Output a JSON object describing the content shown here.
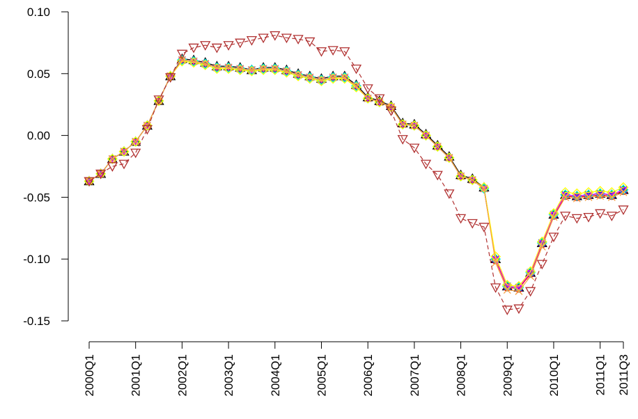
{
  "chart_data": {
    "type": "line",
    "title": "",
    "xlabel": "",
    "ylabel": "",
    "ylim": [
      -0.15,
      0.1
    ],
    "yticks": [
      -0.15,
      -0.1,
      -0.05,
      0.0,
      0.05,
      0.1
    ],
    "ytick_labels": [
      "-0.15",
      "-0.10",
      "-0.05",
      "0.00",
      "0.05",
      "0.10"
    ],
    "xticks": [
      "2000Q1",
      "2001Q1",
      "2002Q1",
      "2003Q1",
      "2004Q1",
      "2005Q1",
      "2006Q1",
      "2007Q1",
      "2008Q1",
      "2009Q1",
      "2010Q1",
      "2011Q1",
      "2011Q3"
    ],
    "x": [
      "2000Q1",
      "2000Q2",
      "2000Q3",
      "2000Q4",
      "2001Q1",
      "2001Q2",
      "2001Q3",
      "2001Q4",
      "2002Q1",
      "2002Q2",
      "2002Q3",
      "2002Q4",
      "2003Q1",
      "2003Q2",
      "2003Q3",
      "2003Q4",
      "2004Q1",
      "2004Q2",
      "2004Q3",
      "2004Q4",
      "2005Q1",
      "2005Q2",
      "2005Q3",
      "2005Q4",
      "2006Q1",
      "2006Q2",
      "2006Q3",
      "2006Q4",
      "2007Q1",
      "2007Q2",
      "2007Q3",
      "2007Q4",
      "2008Q1",
      "2008Q2",
      "2008Q3",
      "2008Q4",
      "2009Q1",
      "2009Q2",
      "2009Q3",
      "2009Q4",
      "2010Q1",
      "2010Q2",
      "2010Q3",
      "2010Q4",
      "2011Q1",
      "2011Q2",
      "2011Q3"
    ],
    "series": [
      {
        "color": "#000000",
        "marker": "triangle",
        "values": [
          -0.037,
          -0.031,
          -0.019,
          -0.013,
          -0.005,
          0.008,
          0.028,
          0.048,
          0.062,
          0.061,
          0.059,
          0.056,
          0.056,
          0.055,
          0.053,
          0.055,
          0.055,
          0.053,
          0.05,
          0.048,
          0.046,
          0.048,
          0.048,
          0.041,
          0.031,
          0.028,
          0.024,
          0.01,
          0.009,
          0.001,
          -0.008,
          -0.017,
          -0.032,
          -0.035,
          -0.042,
          -0.1,
          -0.122,
          -0.123,
          -0.111,
          -0.087,
          -0.064,
          -0.048,
          -0.049,
          -0.048,
          -0.047,
          -0.048,
          -0.044
        ]
      },
      {
        "color": "#ff0000",
        "marker": "circle",
        "values": [
          -0.037,
          -0.031,
          -0.019,
          -0.013,
          -0.005,
          0.008,
          0.028,
          0.048,
          0.061,
          0.06,
          0.058,
          0.055,
          0.055,
          0.054,
          0.053,
          0.054,
          0.054,
          0.052,
          0.049,
          0.047,
          0.045,
          0.047,
          0.047,
          0.04,
          0.03,
          0.027,
          0.023,
          0.009,
          0.008,
          0.0,
          -0.009,
          -0.018,
          -0.033,
          -0.036,
          -0.043,
          -0.101,
          -0.123,
          -0.124,
          -0.112,
          -0.088,
          -0.065,
          -0.049,
          -0.05,
          -0.049,
          -0.048,
          -0.049,
          -0.045
        ]
      },
      {
        "color": "#00cc00",
        "marker": "plus",
        "values": [
          -0.037,
          -0.031,
          -0.019,
          -0.013,
          -0.005,
          0.008,
          0.028,
          0.048,
          0.061,
          0.06,
          0.058,
          0.055,
          0.055,
          0.054,
          0.053,
          0.054,
          0.054,
          0.052,
          0.049,
          0.047,
          0.045,
          0.047,
          0.047,
          0.04,
          0.03,
          0.027,
          0.023,
          0.009,
          0.008,
          0.0,
          -0.009,
          -0.018,
          -0.033,
          -0.036,
          -0.043,
          -0.1,
          -0.122,
          -0.123,
          -0.111,
          -0.087,
          -0.064,
          -0.048,
          -0.049,
          -0.048,
          -0.047,
          -0.048,
          -0.044
        ]
      },
      {
        "color": "#0000ff",
        "marker": "x",
        "values": [
          -0.037,
          -0.031,
          -0.019,
          -0.013,
          -0.005,
          0.008,
          0.028,
          0.048,
          0.061,
          0.06,
          0.058,
          0.055,
          0.055,
          0.054,
          0.053,
          0.054,
          0.054,
          0.052,
          0.049,
          0.047,
          0.045,
          0.047,
          0.047,
          0.04,
          0.03,
          0.027,
          0.023,
          0.009,
          0.008,
          0.0,
          -0.009,
          -0.018,
          -0.033,
          -0.036,
          -0.043,
          -0.1,
          -0.122,
          -0.123,
          -0.111,
          -0.087,
          -0.064,
          -0.048,
          -0.049,
          -0.048,
          -0.047,
          -0.048,
          -0.044
        ]
      },
      {
        "color": "#00e5e5",
        "marker": "diamond",
        "values": [
          -0.037,
          -0.031,
          -0.019,
          -0.013,
          -0.005,
          0.008,
          0.028,
          0.048,
          0.061,
          0.06,
          0.058,
          0.055,
          0.055,
          0.054,
          0.053,
          0.054,
          0.054,
          0.052,
          0.049,
          0.047,
          0.045,
          0.047,
          0.047,
          0.04,
          0.03,
          0.027,
          0.023,
          0.009,
          0.008,
          0.0,
          -0.009,
          -0.018,
          -0.033,
          -0.036,
          -0.043,
          -0.1,
          -0.122,
          -0.123,
          -0.111,
          -0.087,
          -0.064,
          -0.048,
          -0.049,
          -0.048,
          -0.047,
          -0.048,
          -0.044
        ]
      },
      {
        "color": "#ff00ff",
        "marker": "triangle-down-small",
        "values": [
          -0.037,
          -0.031,
          -0.019,
          -0.013,
          -0.005,
          0.008,
          0.028,
          0.048,
          0.061,
          0.06,
          0.058,
          0.055,
          0.055,
          0.054,
          0.053,
          0.054,
          0.054,
          0.052,
          0.049,
          0.047,
          0.045,
          0.047,
          0.047,
          0.04,
          0.03,
          0.027,
          0.023,
          0.009,
          0.008,
          0.0,
          -0.009,
          -0.018,
          -0.033,
          -0.036,
          -0.043,
          -0.1,
          -0.122,
          -0.123,
          -0.111,
          -0.087,
          -0.064,
          -0.048,
          -0.049,
          -0.048,
          -0.047,
          -0.048,
          -0.044
        ]
      },
      {
        "color": "#ffff00",
        "marker": "diamond",
        "values": [
          -0.037,
          -0.031,
          -0.019,
          -0.013,
          -0.005,
          0.008,
          0.028,
          0.048,
          0.06,
          0.059,
          0.057,
          0.054,
          0.054,
          0.053,
          0.052,
          0.053,
          0.053,
          0.051,
          0.048,
          0.046,
          0.044,
          0.046,
          0.046,
          0.039,
          0.03,
          0.027,
          0.023,
          0.009,
          0.008,
          0.0,
          -0.009,
          -0.018,
          -0.033,
          -0.036,
          -0.042,
          -0.098,
          -0.121,
          -0.122,
          -0.11,
          -0.086,
          -0.063,
          -0.046,
          -0.047,
          -0.046,
          -0.045,
          -0.046,
          -0.042
        ]
      },
      {
        "color": "#f5a040",
        "marker": "x",
        "values": [
          -0.037,
          -0.031,
          -0.019,
          -0.013,
          -0.005,
          0.008,
          0.028,
          0.048,
          0.061,
          0.06,
          0.058,
          0.055,
          0.055,
          0.054,
          0.053,
          0.054,
          0.054,
          0.052,
          0.049,
          0.047,
          0.045,
          0.047,
          0.047,
          0.04,
          0.03,
          0.027,
          0.023,
          0.009,
          0.008,
          0.0,
          -0.009,
          -0.018,
          -0.033,
          -0.036,
          -0.043,
          -0.103,
          -0.125,
          -0.126,
          -0.114,
          -0.09,
          -0.066,
          -0.05,
          -0.051,
          -0.05,
          -0.049,
          -0.05,
          -0.046
        ]
      },
      {
        "color": "#b03030",
        "marker": "triangle-down",
        "values": [
          -0.037,
          -0.031,
          -0.025,
          -0.023,
          -0.014,
          0.005,
          0.029,
          0.047,
          0.066,
          0.071,
          0.073,
          0.071,
          0.073,
          0.075,
          0.077,
          0.079,
          0.081,
          0.079,
          0.078,
          0.076,
          0.068,
          0.069,
          0.068,
          0.054,
          0.038,
          0.03,
          0.02,
          -0.003,
          -0.01,
          -0.023,
          -0.032,
          -0.047,
          -0.067,
          -0.071,
          -0.074,
          -0.123,
          -0.141,
          -0.14,
          -0.126,
          -0.104,
          -0.082,
          -0.065,
          -0.067,
          -0.066,
          -0.063,
          -0.065,
          -0.06
        ]
      }
    ]
  }
}
